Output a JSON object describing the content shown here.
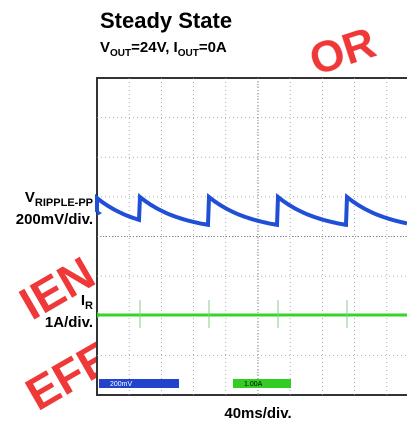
{
  "title": "Steady State",
  "subtitle": [
    "V",
    "OUT",
    "=24V, I",
    "OUT",
    "=0A"
  ],
  "channels": [
    {
      "symbol": "V",
      "subscript": "RIPPLE-PP",
      "scale": "200mV/div.",
      "color": "#1f4fd6"
    },
    {
      "symbol": "I",
      "subscript": "R",
      "scale": "1A/div.",
      "color": "#35d428"
    }
  ],
  "screen_readouts": [
    "200mV",
    "1.00A"
  ],
  "timebase": "40ms/div.",
  "watermark": [
    "OR",
    "IEN",
    "EFE"
  ]
}
